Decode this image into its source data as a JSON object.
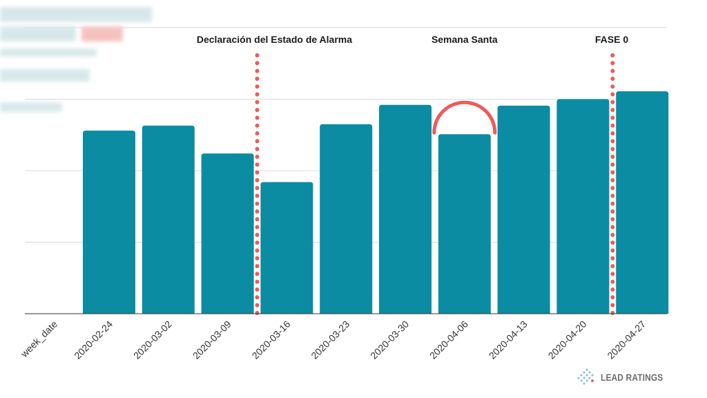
{
  "chart_data": {
    "type": "bar",
    "xlabel": "week_date",
    "categories": [
      "2020-02-24",
      "2020-03-02",
      "2020-03-09",
      "2020-03-16",
      "2020-03-23",
      "2020-03-30",
      "2020-04-06",
      "2020-04-13",
      "2020-04-20",
      "2020-04-27"
    ],
    "values": [
      2.56,
      2.63,
      2.24,
      1.84,
      2.65,
      2.92,
      2.51,
      2.91,
      3.0,
      3.11
    ],
    "ylim": [
      0,
      4
    ],
    "grid": true,
    "y_tick_labels_visible": false,
    "bar_color": "#0b8ca3",
    "annotations": [
      {
        "label": "Declaración del Estado de Alarma",
        "between": [
          "2020-03-09",
          "2020-03-16"
        ],
        "style": "dotted-line",
        "color": "#ee5a5a"
      },
      {
        "label": "Semana Santa",
        "at": "2020-04-06",
        "style": "arc",
        "color": "#ee5a5a"
      },
      {
        "label": "FASE 0",
        "between": [
          "2020-04-20",
          "2020-04-27"
        ],
        "style": "dotted-line",
        "color": "#ee5a5a"
      }
    ]
  },
  "brand": {
    "logo_text": "LEAD RATINGS",
    "logo_icon": "diamond-dots-icon"
  },
  "colors": {
    "bar": "#0b8ca3",
    "annotation": "#ee5a5a",
    "grid": "#d9d9d9",
    "axis": "#333333"
  }
}
